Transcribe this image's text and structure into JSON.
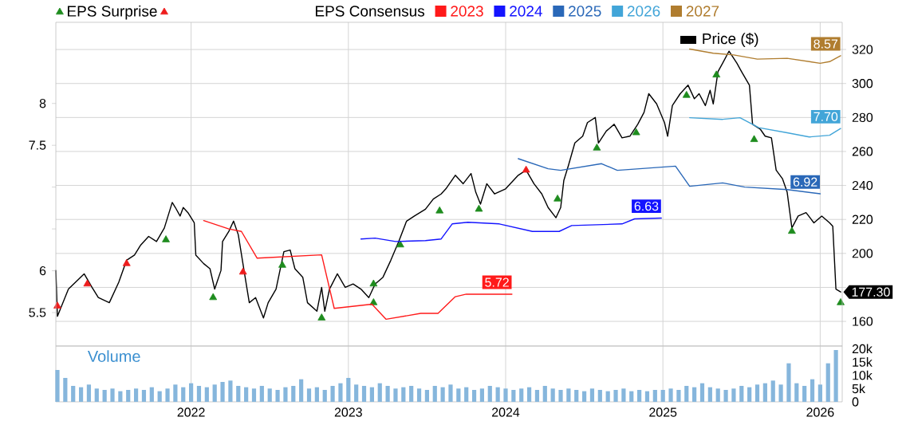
{
  "chart_data": [
    {
      "type": "line",
      "legend_title": "EPS Consensus",
      "legend": "top",
      "grid": true,
      "tick_labels": "y",
      "xlim": [
        2021.14,
        2026.14
      ],
      "xticks": [
        2022,
        2023,
        2024,
        2025,
        2026
      ],
      "ylim": [
        5.1,
        8.97
      ],
      "yticks": [
        5.5,
        6,
        {
          "value": 6.5,
          "label": null
        },
        {
          "value": 7,
          "label": null
        },
        7.5,
        8
      ],
      "y2lim": [
        145.5,
        336
      ],
      "y2ticks": [
        160,
        {
          "value": 180,
          "label": null
        },
        200,
        220,
        240,
        260,
        280,
        300,
        320
      ],
      "series": [
        {
          "name": "2023",
          "color": "#ff1a1a",
          "x": [
            2022.08,
            2022.24,
            2022.32,
            2022.42,
            2022.83,
            2022.91,
            2023.15,
            2023.24,
            2023.46,
            2023.57,
            2023.68,
            2023.75,
            2024.04
          ],
          "values": [
            6.6,
            6.5,
            6.47,
            6.15,
            6.19,
            5.55,
            5.6,
            5.42,
            5.49,
            5.49,
            5.69,
            5.72,
            5.72
          ],
          "value_labels": [
            null,
            null,
            null,
            null,
            null,
            null,
            null,
            null,
            null,
            null,
            null,
            null,
            "5.72"
          ]
        },
        {
          "name": "2024",
          "color": "#1414ff",
          "x": [
            2023.08,
            2023.17,
            2023.3,
            2023.49,
            2023.59,
            2023.66,
            2023.76,
            2023.96,
            2024.17,
            2024.34,
            2024.42,
            2024.74,
            2024.82,
            2024.99
          ],
          "values": [
            6.38,
            6.39,
            6.35,
            6.36,
            6.38,
            6.56,
            6.58,
            6.56,
            6.47,
            6.47,
            6.54,
            6.56,
            6.62,
            6.63
          ],
          "value_labels": [
            null,
            null,
            null,
            null,
            null,
            null,
            null,
            null,
            null,
            null,
            null,
            null,
            null,
            "6.63"
          ]
        },
        {
          "name": "2025",
          "color": "#2a68b8",
          "x": [
            2024.08,
            2024.27,
            2024.35,
            2024.61,
            2024.71,
            2025.08,
            2025.17,
            2025.38,
            2025.52,
            2025.79,
            2026.0
          ],
          "values": [
            7.34,
            7.22,
            7.2,
            7.28,
            7.2,
            7.25,
            7.01,
            7.05,
            7.0,
            6.97,
            6.92
          ],
          "value_labels": [
            null,
            null,
            null,
            null,
            null,
            null,
            null,
            null,
            null,
            null,
            "6.92"
          ]
        },
        {
          "name": "2026",
          "color": "#42a5d8",
          "x": [
            2025.17,
            2025.38,
            2025.49,
            2025.61,
            2025.79,
            2025.93,
            2026.06,
            2026.13
          ],
          "values": [
            7.83,
            7.81,
            7.83,
            7.71,
            7.65,
            7.6,
            7.62,
            7.7
          ],
          "value_labels": [
            null,
            null,
            null,
            null,
            null,
            null,
            null,
            "7.70"
          ]
        },
        {
          "name": "2027",
          "color": "#b07d2f",
          "x": [
            2025.17,
            2025.32,
            2025.45,
            2025.6,
            2025.79,
            2026.0,
            2026.06,
            2026.13
          ],
          "values": [
            8.65,
            8.6,
            8.58,
            8.53,
            8.54,
            8.48,
            8.5,
            8.57
          ],
          "value_labels": [
            null,
            null,
            null,
            null,
            null,
            null,
            null,
            "8.57"
          ]
        },
        {
          "name": "Price ($)",
          "axis": "y2",
          "color": "#000000",
          "x": [
            2021.14,
            2021.15,
            2021.22,
            2021.32,
            2021.37,
            2021.41,
            2021.48,
            2021.54,
            2021.59,
            2021.64,
            2021.68,
            2021.73,
            2021.78,
            2021.83,
            2021.88,
            2021.9,
            2021.93,
            2021.95,
            2021.98,
            2022.02,
            2022.03,
            2022.08,
            2022.12,
            2022.15,
            2022.19,
            2022.2,
            2022.24,
            2022.27,
            2022.3,
            2022.34,
            2022.37,
            2022.41,
            2022.46,
            2022.49,
            2022.54,
            2022.59,
            2022.63,
            2022.66,
            2022.71,
            2022.74,
            2022.8,
            2022.83,
            2022.85,
            2022.88,
            2022.93,
            2022.98,
            2023.03,
            2023.08,
            2023.13,
            2023.17,
            2023.22,
            2023.27,
            2023.32,
            2023.37,
            2023.42,
            2023.49,
            2023.54,
            2023.59,
            2023.62,
            2023.68,
            2023.73,
            2023.78,
            2023.81,
            2023.84,
            2023.88,
            2023.93,
            2024.0,
            2024.08,
            2024.13,
            2024.18,
            2024.23,
            2024.27,
            2024.32,
            2024.35,
            2024.37,
            2024.4,
            2024.44,
            2024.49,
            2024.52,
            2024.57,
            2024.59,
            2024.64,
            2024.69,
            2024.74,
            2024.79,
            2024.84,
            2024.88,
            2024.91,
            2024.96,
            2025.01,
            2025.03,
            2025.06,
            2025.11,
            2025.16,
            2025.2,
            2025.23,
            2025.27,
            2025.3,
            2025.32,
            2025.35,
            2025.38,
            2025.42,
            2025.47,
            2025.5,
            2025.55,
            2025.57,
            2025.62,
            2025.65,
            2025.69,
            2025.72,
            2025.76,
            2025.79,
            2025.82,
            2025.86,
            2025.91,
            2025.96,
            2026.01,
            2026.06,
            2026.08,
            2026.1,
            2026.13
          ],
          "values": [
            190,
            163,
            179,
            188,
            180,
            174,
            171,
            183,
            196,
            199,
            205,
            210,
            207,
            215,
            230,
            227,
            222,
            227,
            224,
            218,
            199,
            194,
            191,
            179,
            190,
            207,
            213,
            219,
            211,
            188,
            171,
            174,
            162,
            171,
            179,
            201,
            202,
            191,
            186,
            171,
            166,
            180,
            166,
            179,
            188,
            180,
            182,
            179,
            174,
            182,
            186,
            196,
            207,
            219,
            222,
            226,
            232,
            235,
            238,
            246,
            241,
            247,
            236,
            229,
            241,
            235,
            238,
            246,
            249,
            241,
            235,
            227,
            221,
            227,
            243,
            252,
            265,
            269,
            277,
            280,
            265,
            272,
            276,
            268,
            269,
            276,
            283,
            294,
            288,
            277,
            269,
            287,
            294,
            299,
            291,
            294,
            287,
            296,
            288,
            307,
            312,
            319,
            312,
            307,
            299,
            276,
            273,
            269,
            268,
            249,
            244,
            236,
            215,
            222,
            224,
            218,
            222,
            218,
            216,
            179,
            177.3
          ],
          "value_labels": [
            null,
            null,
            null,
            null,
            null,
            null,
            null,
            null,
            null,
            null,
            null,
            null,
            null,
            null,
            null,
            null,
            null,
            null,
            null,
            null,
            null,
            null,
            null,
            null,
            null,
            null,
            null,
            null,
            null,
            null,
            null,
            null,
            null,
            null,
            null,
            null,
            null,
            null,
            null,
            null,
            null,
            null,
            null,
            null,
            null,
            null,
            null,
            null,
            null,
            null,
            null,
            null,
            null,
            null,
            null,
            null,
            null,
            null,
            null,
            null,
            null,
            null,
            null,
            null,
            null,
            null,
            null,
            null,
            null,
            null,
            null,
            null,
            null,
            null,
            null,
            null,
            null,
            null,
            null,
            null,
            null,
            null,
            null,
            null,
            null,
            null,
            null,
            null,
            null,
            null,
            null,
            null,
            null,
            null,
            null,
            null,
            null,
            null,
            null,
            null,
            null,
            null,
            null,
            null,
            null,
            null,
            null,
            null,
            null,
            null,
            null,
            null,
            null,
            null,
            null,
            null,
            null,
            null,
            null,
            null,
            "177.30"
          ]
        },
        {
          "name": "EPS Surprise",
          "type": "scatter",
          "axis": "y2",
          "marker": "triangle",
          "color": "#1e8c1e",
          "x": [
            2021.84,
            2022.14,
            2022.58,
            2022.83,
            2023.16,
            2023.16,
            2023.33,
            2023.58,
            2023.83,
            2024.33,
            2024.58,
            2024.83,
            2025.15,
            2025.34,
            2025.58,
            2025.82,
            2026.13
          ],
          "values": [
            208,
            174,
            193,
            162,
            182,
            171,
            205,
            225,
            226,
            232,
            262,
            271,
            293,
            305,
            267,
            213,
            171
          ]
        },
        {
          "type": "scatter",
          "axis": "y2",
          "marker": "triangle",
          "color": "#ee1c1c",
          "x": [
            2021.15,
            2021.34,
            2021.59,
            2022.33,
            2024.13
          ],
          "values": [
            169,
            182,
            194,
            189,
            249
          ]
        }
      ]
    },
    {
      "type": "bar",
      "title": "Volume",
      "grid": "x",
      "color": "#86b6dc",
      "xlim": [
        2021.14,
        2026.14
      ],
      "xticks": [
        2022,
        2023,
        2024,
        2025,
        2026
      ],
      "ylim": [
        0,
        21000
      ],
      "yticks": [
        0,
        {
          "value": 5000,
          "label": "5k"
        },
        {
          "value": 10000,
          "label": "10k"
        },
        {
          "value": 15000,
          "label": "15k"
        },
        {
          "value": 20000,
          "label": "20k"
        }
      ],
      "x": [
        2021.15,
        2021.2,
        2021.25,
        2021.3,
        2021.35,
        2021.4,
        2021.45,
        2021.5,
        2021.55,
        2021.6,
        2021.65,
        2021.7,
        2021.75,
        2021.8,
        2021.85,
        2021.9,
        2021.95,
        2022.0,
        2022.05,
        2022.1,
        2022.15,
        2022.2,
        2022.25,
        2022.3,
        2022.35,
        2022.4,
        2022.45,
        2022.5,
        2022.55,
        2022.6,
        2022.65,
        2022.7,
        2022.75,
        2022.8,
        2022.85,
        2022.9,
        2022.95,
        2023.0,
        2023.05,
        2023.1,
        2023.15,
        2023.2,
        2023.25,
        2023.3,
        2023.35,
        2023.4,
        2023.45,
        2023.5,
        2023.55,
        2023.6,
        2023.65,
        2023.7,
        2023.75,
        2023.8,
        2023.85,
        2023.9,
        2023.95,
        2024.0,
        2024.05,
        2024.1,
        2024.15,
        2024.2,
        2024.25,
        2024.3,
        2024.35,
        2024.4,
        2024.45,
        2024.5,
        2024.55,
        2024.6,
        2024.65,
        2024.7,
        2024.75,
        2024.8,
        2024.85,
        2024.9,
        2024.95,
        2025.0,
        2025.05,
        2025.1,
        2025.15,
        2025.2,
        2025.25,
        2025.3,
        2025.35,
        2025.4,
        2025.45,
        2025.5,
        2025.55,
        2025.6,
        2025.65,
        2025.7,
        2025.75,
        2025.8,
        2025.85,
        2025.9,
        2025.95,
        2026.0,
        2026.05,
        2026.1
      ],
      "values": [
        12000,
        9000,
        6000,
        5500,
        6500,
        5000,
        4500,
        5000,
        4000,
        4500,
        5000,
        4500,
        5500,
        4000,
        5000,
        6500,
        5500,
        7000,
        6000,
        5500,
        6500,
        7500,
        8000,
        6000,
        5500,
        5000,
        6000,
        5000,
        4500,
        5500,
        6000,
        8500,
        5000,
        5500,
        4500,
        6000,
        7000,
        9000,
        6500,
        6000,
        5500,
        7000,
        6000,
        5000,
        5500,
        6000,
        5000,
        4500,
        6000,
        5500,
        6500,
        5000,
        5500,
        4500,
        5000,
        6000,
        5500,
        5000,
        4500,
        5000,
        5500,
        4500,
        6000,
        5000,
        4500,
        5000,
        4500,
        4000,
        5000,
        4500,
        4000,
        4500,
        5000,
        4000,
        4500,
        4000,
        4500,
        4500,
        5000,
        4500,
        6000,
        5500,
        7000,
        5500,
        5000,
        4500,
        5000,
        6000,
        5500,
        6500,
        7000,
        8000,
        6500,
        14500,
        7000,
        6000,
        8500,
        6500,
        14500,
        19500
      ]
    }
  ]
}
